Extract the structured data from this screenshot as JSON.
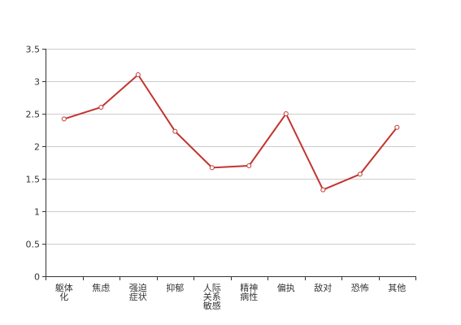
{
  "colors": {
    "series": "#c23531",
    "grid": "#cccccc",
    "axis": "#333333",
    "background": "#ffffff"
  },
  "chart_data": {
    "type": "line",
    "title": "",
    "xlabel": "",
    "ylabel": "",
    "ylim": [
      0,
      3.5
    ],
    "y_ticks": [
      "0",
      "0.5",
      "1",
      "1.5",
      "2",
      "2.5",
      "3",
      "3.5"
    ],
    "grid": true,
    "legend": "none",
    "categories": [
      "躯体化",
      "焦虑",
      "强迫症状",
      "抑郁",
      "人际关系敏感",
      "精神病性",
      "偏执",
      "敌对",
      "恐怖",
      "其他"
    ],
    "series": [
      {
        "values": [
          2.42,
          2.6,
          3.1,
          2.23,
          1.67,
          1.7,
          2.5,
          1.33,
          1.57,
          2.29
        ]
      }
    ]
  }
}
